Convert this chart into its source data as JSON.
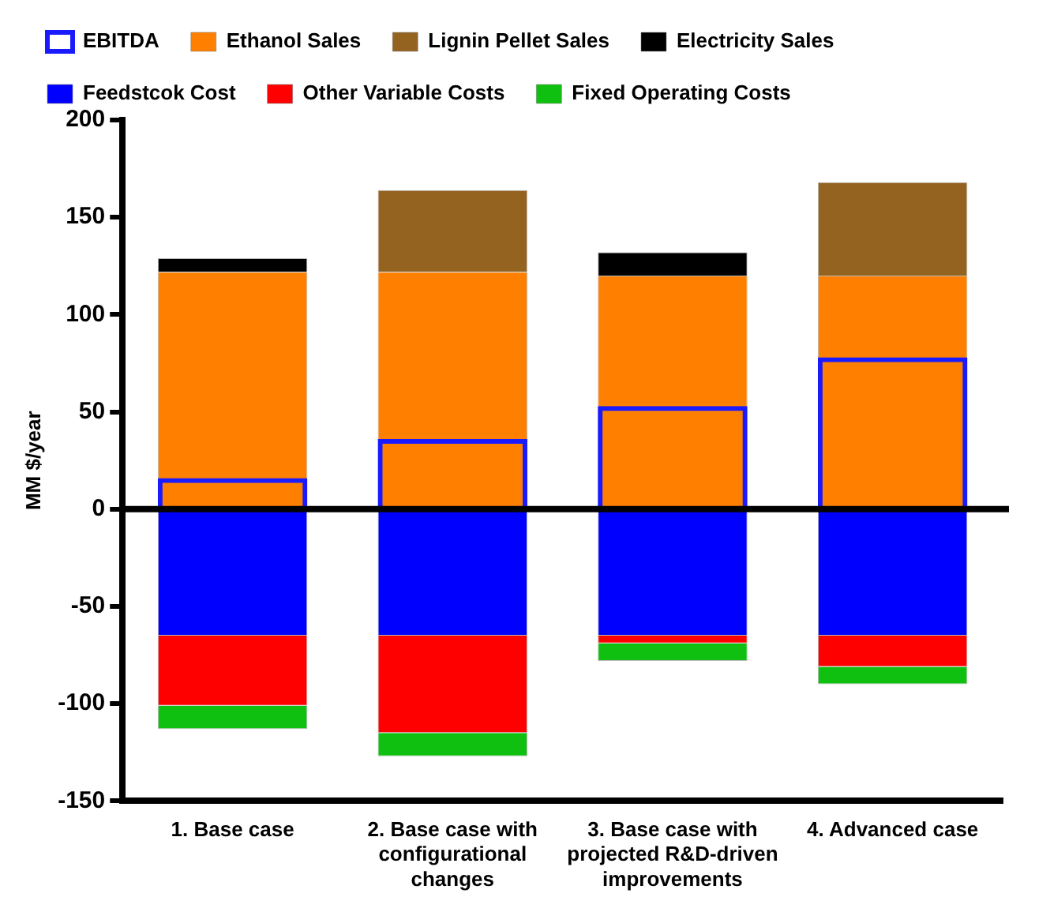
{
  "chart_data": {
    "type": "bar",
    "ylabel": "MM $/year",
    "categories": [
      "1. Base case",
      "2. Base case with configurational changes",
      "3. Base case with projected R&D-driven improvements",
      "4. Advanced case"
    ],
    "series": [
      {
        "name": "Ethanol Sales",
        "color": "#ff8000",
        "base": [
          0,
          0,
          0,
          0
        ],
        "values": [
          122,
          122,
          120,
          120
        ]
      },
      {
        "name": "Lignin Pellet Sales",
        "color": "#946320",
        "base": [
          null,
          122,
          null,
          120
        ],
        "values": [
          null,
          42,
          null,
          48
        ]
      },
      {
        "name": "Electricity Sales",
        "color": "#000000",
        "base": [
          122,
          null,
          120,
          null
        ],
        "values": [
          7,
          null,
          12,
          null
        ]
      },
      {
        "name": "Feedstcok Cost",
        "color": "#0000ff",
        "base": [
          0,
          0,
          0,
          0
        ],
        "values": [
          -65,
          -65,
          -65,
          -65
        ]
      },
      {
        "name": "Other Variable Costs",
        "color": "#ff0000",
        "base": [
          -65,
          -65,
          -65,
          -65
        ],
        "values": [
          -36,
          -50,
          -4,
          -16
        ]
      },
      {
        "name": "Fixed Operating Costs",
        "color": "#10c010",
        "base": [
          -101,
          -115,
          -69,
          -81
        ],
        "values": [
          -12,
          -12,
          -9,
          -9
        ]
      },
      {
        "name": "EBITDA",
        "color": "#1a1aff",
        "type": "bar",
        "base": [
          0,
          0,
          0,
          0
        ],
        "values": [
          16,
          36,
          53,
          78
        ]
      }
    ],
    "ylim": [
      -150,
      200
    ],
    "yticks": [
      -150,
      -100,
      -50,
      0,
      50,
      100,
      150,
      200
    ],
    "ref_lines": [
      {
        "axis": "y",
        "value": 0
      }
    ],
    "grid": false,
    "legend": "top"
  }
}
